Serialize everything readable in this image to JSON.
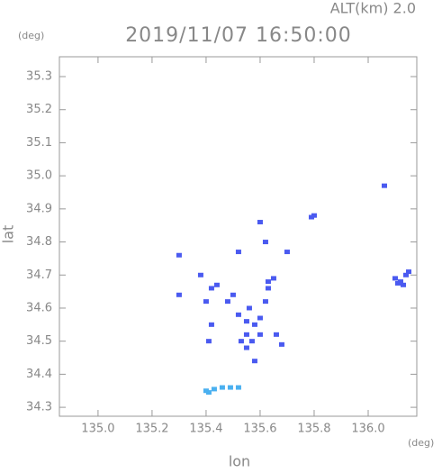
{
  "chart_data": {
    "type": "scatter",
    "title": "2019/11/07 16:50:00",
    "subtitle": "ALT(km) 2.0",
    "x_label": "lon",
    "y_label": "lat",
    "x_unit": "(deg)",
    "y_unit": "(deg)",
    "xlim": [
      134.857,
      136.18
    ],
    "ylim": [
      34.273,
      35.36
    ],
    "xticks": [
      {
        "value": 135.0,
        "label": "135.0"
      },
      135.2,
      135.4,
      135.6,
      135.8,
      {
        "value": 136.0,
        "label": "136.0"
      }
    ],
    "yticks": [
      34.3,
      34.4,
      34.5,
      34.6,
      34.7,
      34.8,
      34.9,
      {
        "value": 35.0,
        "label": "35.0"
      },
      35.1,
      35.2,
      35.3
    ],
    "x": [
      135.8,
      135.79,
      136.12,
      136.1,
      136.14,
      136.13,
      136.11,
      136.15,
      135.55,
      135.57,
      135.53,
      135.55,
      135.58,
      135.6,
      135.62,
      135.63,
      135.55,
      135.52,
      135.6,
      135.66,
      135.68,
      135.58,
      135.41,
      135.4,
      135.42,
      135.44,
      135.48,
      135.5,
      135.38,
      135.62,
      135.6,
      135.63,
      135.65,
      135.3,
      135.3,
      135.7,
      135.52,
      136.06,
      135.42,
      135.56,
      135.4,
      135.43,
      135.46,
      135.49,
      135.52,
      135.41
    ],
    "y": [
      34.88,
      34.875,
      34.68,
      34.69,
      34.7,
      34.67,
      34.675,
      34.71,
      34.52,
      34.5,
      34.5,
      34.48,
      34.55,
      34.57,
      34.62,
      34.66,
      34.56,
      34.58,
      34.52,
      34.52,
      34.49,
      34.44,
      34.5,
      34.62,
      34.66,
      34.67,
      34.62,
      34.64,
      34.7,
      34.8,
      34.86,
      34.68,
      34.69,
      34.64,
      34.76,
      34.77,
      34.77,
      34.97,
      34.55,
      34.6,
      34.35,
      34.355,
      34.36,
      34.36,
      34.36,
      34.345
    ],
    "point_colors": [
      "#4a5af0",
      "#4a5af0",
      "#4a5af0",
      "#4a5af0",
      "#4a5af0",
      "#4a5af0",
      "#4a5af0",
      "#4a5af0",
      "#4a5af0",
      "#4a5af0",
      "#4a5af0",
      "#4a5af0",
      "#4a5af0",
      "#4a5af0",
      "#4a5af0",
      "#4a5af0",
      "#4a5af0",
      "#4a5af0",
      "#4a5af0",
      "#4a5af0",
      "#4a5af0",
      "#4a5af0",
      "#4a5af0",
      "#4a5af0",
      "#4a5af0",
      "#4a5af0",
      "#4a5af0",
      "#4a5af0",
      "#4a5af0",
      "#4a5af0",
      "#4a5af0",
      "#4a5af0",
      "#4a5af0",
      "#4a5af0",
      "#4a5af0",
      "#4a5af0",
      "#4a5af0",
      "#4a5af0",
      "#4a5af0",
      "#4a5af0",
      "#4ab0f0",
      "#4ab0f0",
      "#4ab0f0",
      "#4ab0f0",
      "#4ab0f0",
      "#4ab0f0"
    ]
  }
}
